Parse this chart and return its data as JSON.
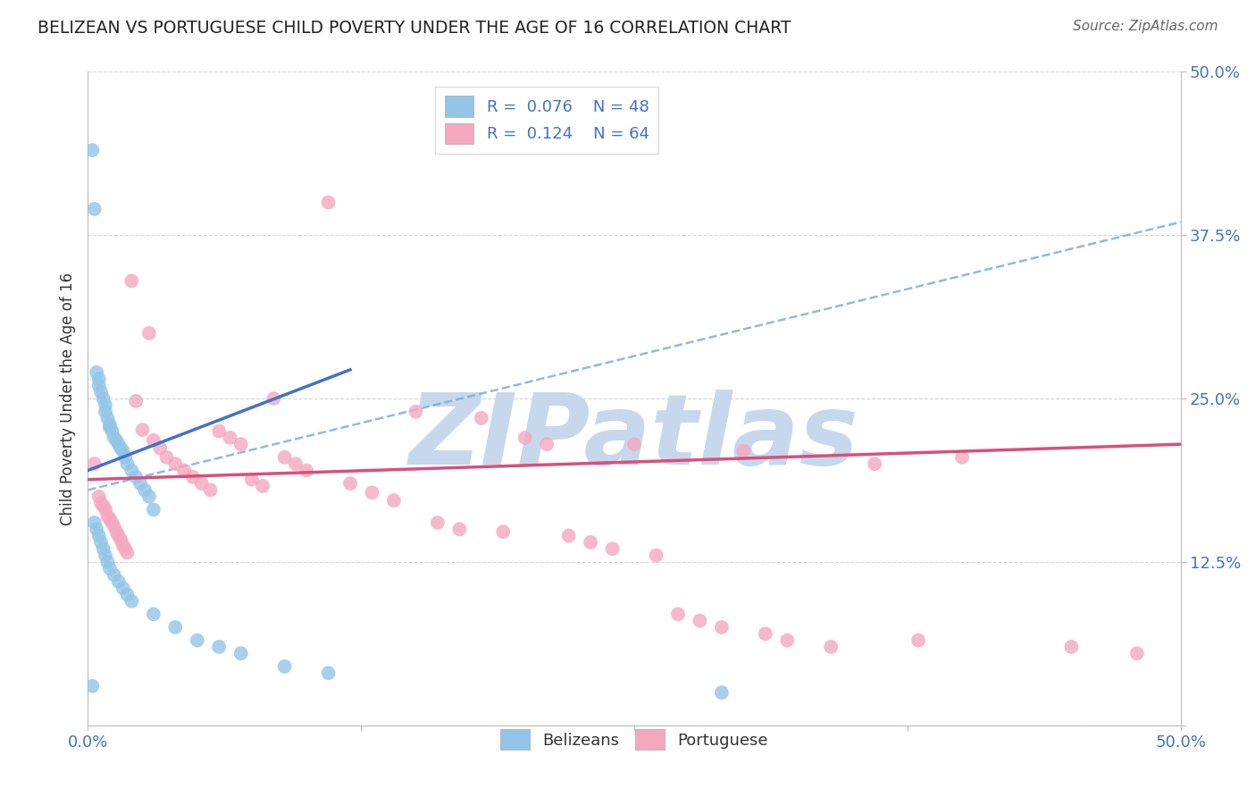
{
  "title": "BELIZEAN VS PORTUGUESE CHILD POVERTY UNDER THE AGE OF 16 CORRELATION CHART",
  "source": "Source: ZipAtlas.com",
  "ylabel": "Child Poverty Under the Age of 16",
  "xlim": [
    0.0,
    0.5
  ],
  "ylim": [
    0.0,
    0.5
  ],
  "xtick_positions": [
    0.0,
    0.125,
    0.25,
    0.375,
    0.5
  ],
  "xtick_labels": [
    "0.0%",
    "",
    "",
    "",
    "50.0%"
  ],
  "ytick_positions": [
    0.0,
    0.125,
    0.25,
    0.375,
    0.5
  ],
  "ytick_labels": [
    "",
    "12.5%",
    "25.0%",
    "37.5%",
    "50.0%"
  ],
  "belizean_R": 0.076,
  "belizean_N": 48,
  "portuguese_R": 0.124,
  "portuguese_N": 64,
  "belizean_color": "#92C5E8",
  "portuguese_color": "#F4A8C0",
  "belizean_line_color": "#4472C4",
  "portuguese_line_color": "#D94F7C",
  "dashed_line_color": "#7BAFD4",
  "background_color": "#FFFFFF",
  "grid_color": "#CCCCCC",
  "watermark_color": "#C8D8EC",
  "title_color": "#222222",
  "source_color": "#666666",
  "axis_label_color": "#333333",
  "tick_label_color": "#4472C4",
  "belizean_line_x0": 0.0,
  "belizean_line_y0": 0.195,
  "belizean_line_x1": 0.12,
  "belizean_line_y1": 0.272,
  "dashed_line_x0": 0.0,
  "dashed_line_y0": 0.18,
  "dashed_line_x1": 0.5,
  "dashed_line_y1": 0.385,
  "portuguese_line_x0": 0.0,
  "portuguese_line_y0": 0.188,
  "portuguese_line_x1": 0.5,
  "portuguese_line_y1": 0.215,
  "belizean_x": [
    0.002,
    0.003,
    0.004,
    0.005,
    0.005,
    0.006,
    0.007,
    0.008,
    0.008,
    0.009,
    0.01,
    0.01,
    0.011,
    0.012,
    0.013,
    0.014,
    0.015,
    0.016,
    0.017,
    0.018,
    0.02,
    0.022,
    0.024,
    0.026,
    0.028,
    0.03,
    0.003,
    0.004,
    0.005,
    0.006,
    0.007,
    0.008,
    0.009,
    0.01,
    0.012,
    0.014,
    0.016,
    0.018,
    0.02,
    0.03,
    0.04,
    0.05,
    0.06,
    0.07,
    0.09,
    0.11,
    0.002,
    0.29
  ],
  "belizean_y": [
    0.44,
    0.395,
    0.27,
    0.265,
    0.26,
    0.255,
    0.25,
    0.245,
    0.24,
    0.235,
    0.23,
    0.228,
    0.225,
    0.22,
    0.218,
    0.215,
    0.212,
    0.21,
    0.205,
    0.2,
    0.195,
    0.19,
    0.185,
    0.18,
    0.175,
    0.165,
    0.155,
    0.15,
    0.145,
    0.14,
    0.135,
    0.13,
    0.125,
    0.12,
    0.115,
    0.11,
    0.105,
    0.1,
    0.095,
    0.085,
    0.075,
    0.065,
    0.06,
    0.055,
    0.045,
    0.04,
    0.03,
    0.025
  ],
  "portuguese_x": [
    0.003,
    0.005,
    0.006,
    0.007,
    0.008,
    0.009,
    0.01,
    0.011,
    0.012,
    0.013,
    0.014,
    0.015,
    0.016,
    0.017,
    0.018,
    0.02,
    0.022,
    0.025,
    0.028,
    0.03,
    0.033,
    0.036,
    0.04,
    0.044,
    0.048,
    0.052,
    0.056,
    0.06,
    0.065,
    0.07,
    0.075,
    0.08,
    0.085,
    0.09,
    0.095,
    0.1,
    0.11,
    0.12,
    0.13,
    0.14,
    0.15,
    0.16,
    0.17,
    0.18,
    0.19,
    0.2,
    0.21,
    0.22,
    0.23,
    0.24,
    0.25,
    0.26,
    0.27,
    0.28,
    0.29,
    0.3,
    0.31,
    0.32,
    0.34,
    0.36,
    0.38,
    0.4,
    0.45,
    0.48
  ],
  "portuguese_y": [
    0.2,
    0.175,
    0.17,
    0.168,
    0.165,
    0.16,
    0.158,
    0.155,
    0.152,
    0.148,
    0.145,
    0.142,
    0.138,
    0.135,
    0.132,
    0.34,
    0.248,
    0.226,
    0.3,
    0.218,
    0.212,
    0.205,
    0.2,
    0.195,
    0.19,
    0.185,
    0.18,
    0.225,
    0.22,
    0.215,
    0.188,
    0.183,
    0.25,
    0.205,
    0.2,
    0.195,
    0.4,
    0.185,
    0.178,
    0.172,
    0.24,
    0.155,
    0.15,
    0.235,
    0.148,
    0.22,
    0.215,
    0.145,
    0.14,
    0.135,
    0.215,
    0.13,
    0.085,
    0.08,
    0.075,
    0.21,
    0.07,
    0.065,
    0.06,
    0.2,
    0.065,
    0.205,
    0.06,
    0.055
  ]
}
